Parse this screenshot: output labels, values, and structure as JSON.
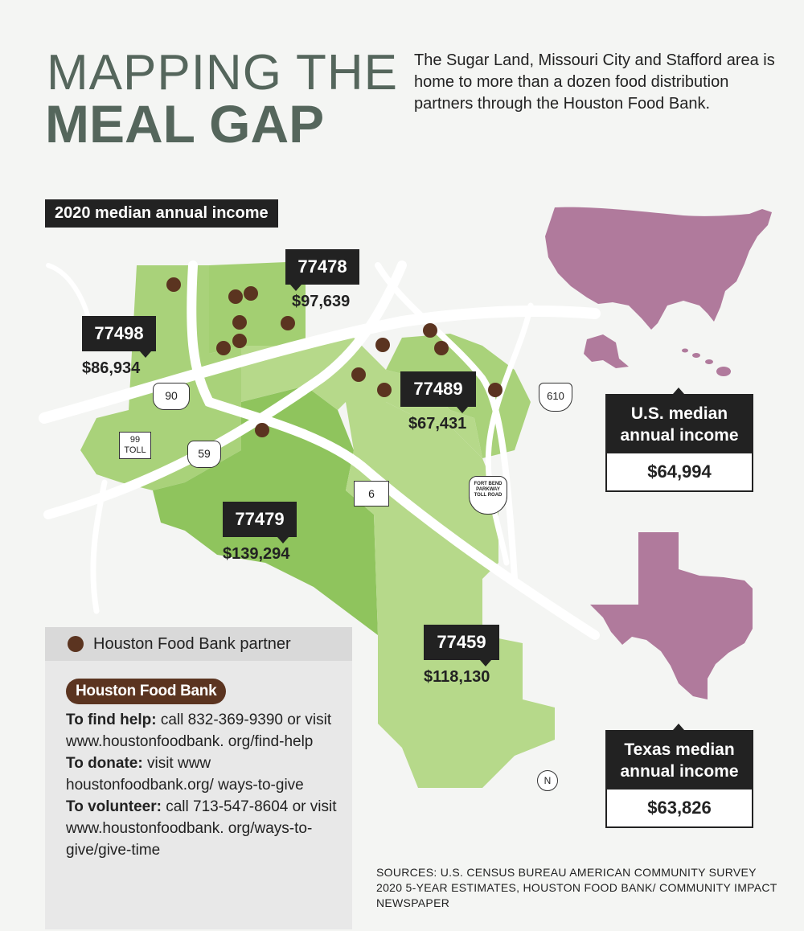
{
  "header": {
    "title_line1": "MAPPING THE",
    "title_line2": "MEAL GAP",
    "intro": "The Sugar Land, Missouri City and Stafford area is home to more than a dozen food distribution partners through the Houston Food Bank."
  },
  "map": {
    "income_label": "2020 median annual income",
    "zip_codes": [
      {
        "zip": "77478",
        "income": "$97,639"
      },
      {
        "zip": "77498",
        "income": "$86,934"
      },
      {
        "zip": "77489",
        "income": "$67,431"
      },
      {
        "zip": "77479",
        "income": "$139,294"
      },
      {
        "zip": "77459",
        "income": "$118,130"
      }
    ],
    "highways": [
      "90",
      "99\nTOLL",
      "59",
      "6",
      "610"
    ],
    "toll_sign": "FORT BEND PARKWAY TOLL ROAD",
    "north": "N",
    "colors": {
      "land_light": "#b6d98a",
      "land_dark": "#8dc15a",
      "roads": "#ffffff",
      "partner_dot": "#5b3420",
      "inset_map": "#b07a9c"
    }
  },
  "us_card": {
    "title": "U.S. median annual income",
    "value": "$64,994"
  },
  "texas_card": {
    "title": "Texas median annual income",
    "value": "$63,826"
  },
  "legend": {
    "partner_label": "Houston Food Bank partner",
    "org_name": "Houston Food Bank",
    "help_label": "To find help:",
    "help_text": "call 832-369-9390 or visit www.houstonfoodbank. org/find-help",
    "donate_label": "To donate:",
    "donate_text": "visit www houstonfoodbank.org/ ways-to-give",
    "volunteer_label": "To volunteer:",
    "volunteer_text": "call 713-547-8604 or visit www.houstonfoodbank. org/ways-to-give/give-time"
  },
  "sources": "SOURCES: U.S. CENSUS BUREAU AMERICAN COMMUNITY SURVEY 2020 5-YEAR ESTIMATES, HOUSTON FOOD BANK/ COMMUNITY IMPACT NEWSPAPER"
}
